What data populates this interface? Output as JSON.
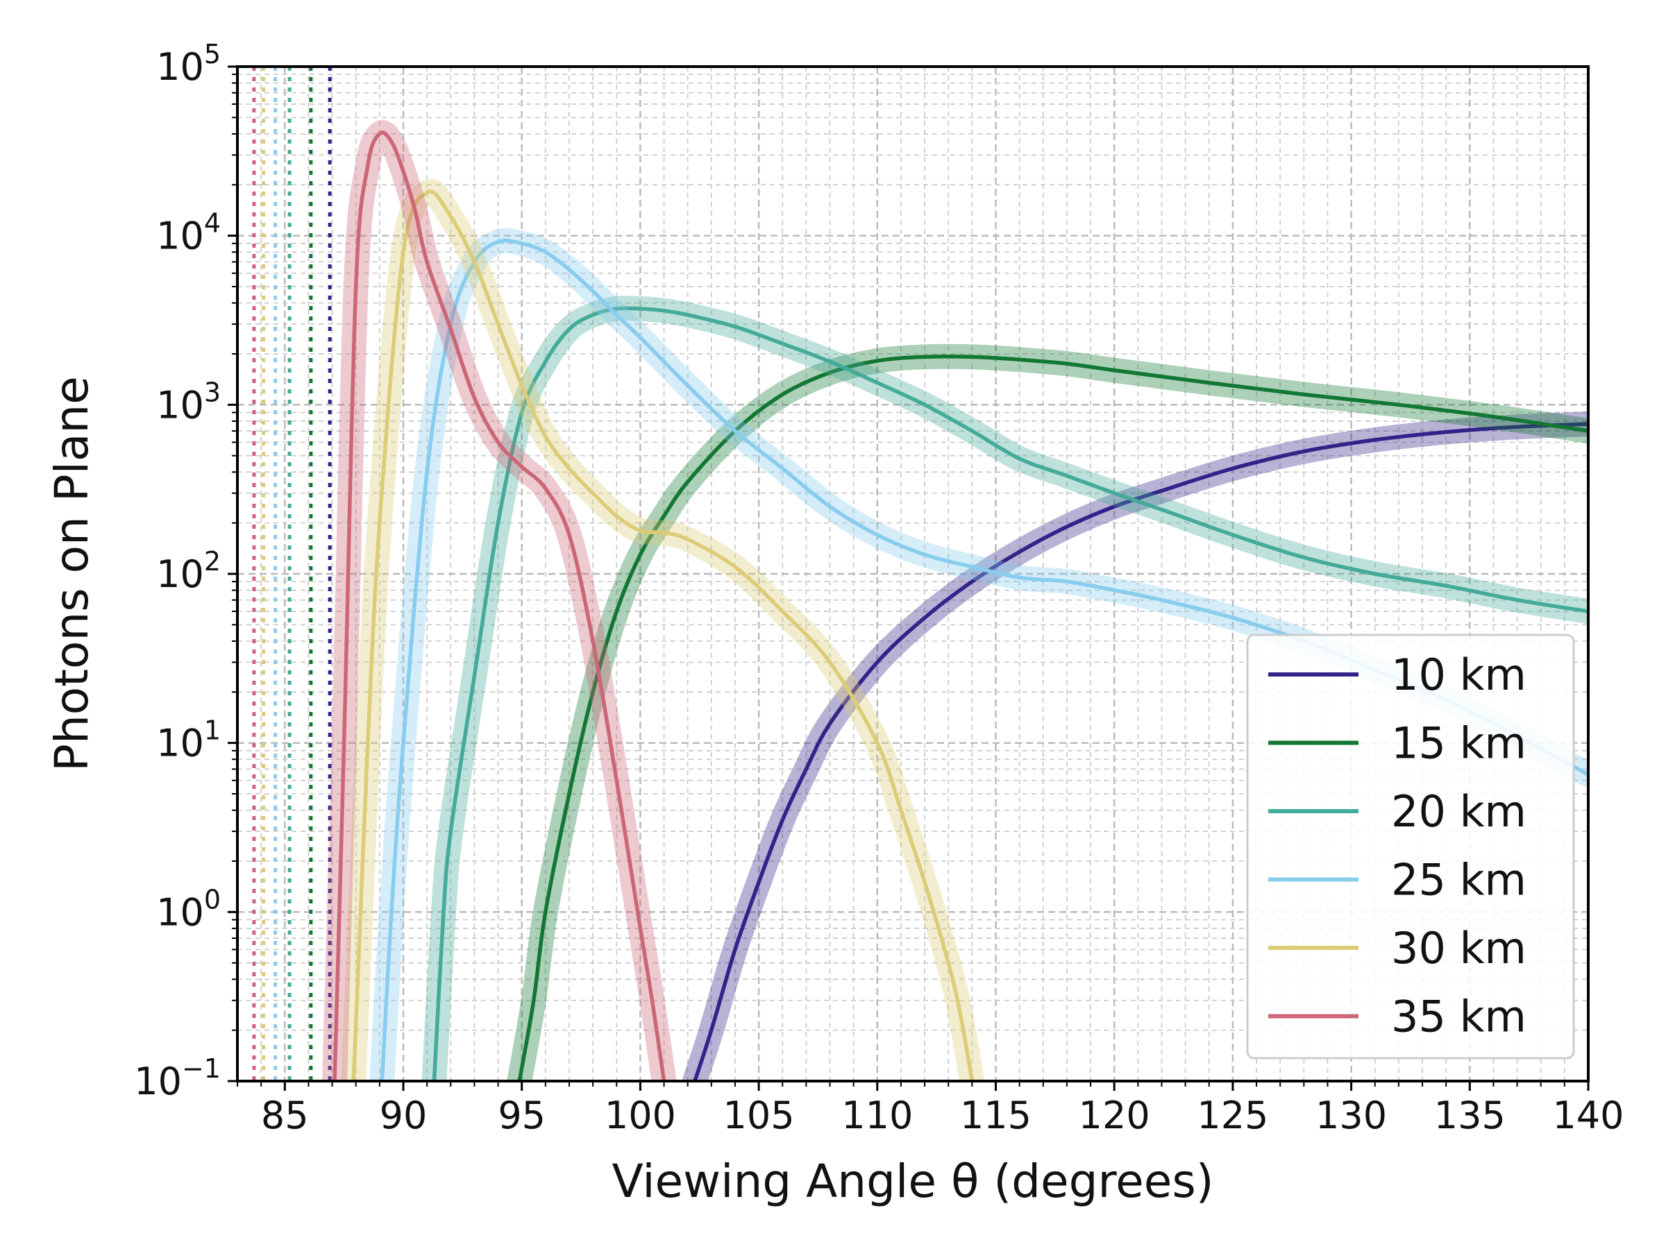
{
  "chart_data": {
    "type": "line",
    "title": "",
    "xlabel": "Viewing Angle θ (degrees)",
    "ylabel": "Photons on Plane",
    "xlim": [
      83,
      140
    ],
    "ylim": [
      0.1,
      100000
    ],
    "yscale": "log",
    "grid": true,
    "legend_position": "lower-right",
    "x_ticks": [
      85,
      90,
      95,
      100,
      105,
      110,
      115,
      120,
      125,
      130,
      135,
      140
    ],
    "y_ticks": [
      {
        "value": 0.1,
        "base": "10",
        "exp": "−1"
      },
      {
        "value": 1,
        "base": "10",
        "exp": "0"
      },
      {
        "value": 10,
        "base": "10",
        "exp": "1"
      },
      {
        "value": 100,
        "base": "10",
        "exp": "2"
      },
      {
        "value": 1000,
        "base": "10",
        "exp": "3"
      },
      {
        "value": 10000,
        "base": "10",
        "exp": "4"
      },
      {
        "value": 100000,
        "base": "10",
        "exp": "5"
      }
    ],
    "series": [
      {
        "name": "10 km",
        "color": "#332288",
        "cutoff_angle": 86.9,
        "x": [
          102.3,
          103,
          104,
          105,
          106,
          107,
          108,
          110,
          112,
          114,
          116,
          118,
          120,
          122,
          125,
          128,
          131,
          134,
          137,
          140
        ],
        "y": [
          0.1,
          0.2,
          0.6,
          1.5,
          3.5,
          7,
          13,
          30,
          55,
          90,
          135,
          190,
          250,
          310,
          420,
          530,
          620,
          690,
          740,
          770
        ]
      },
      {
        "name": "15 km",
        "color": "#117733",
        "cutoff_angle": 86.1,
        "x": [
          94.9,
          95.5,
          96,
          97,
          98,
          99,
          100,
          101,
          102,
          104,
          106,
          108,
          110,
          112,
          114,
          116,
          118,
          120,
          124,
          128,
          132,
          136,
          140
        ],
        "y": [
          0.1,
          0.3,
          1,
          5,
          20,
          60,
          130,
          220,
          350,
          700,
          1150,
          1550,
          1820,
          1920,
          1920,
          1850,
          1750,
          1600,
          1350,
          1150,
          1000,
          850,
          700
        ]
      },
      {
        "name": "20 km",
        "color": "#44AA99",
        "cutoff_angle": 85.2,
        "x": [
          91.3,
          91.7,
          92,
          93,
          94,
          95,
          96,
          97,
          98,
          99,
          100,
          101,
          102,
          104,
          106,
          108,
          110,
          112,
          114,
          116,
          118,
          120,
          122,
          125,
          128,
          131,
          134,
          137,
          140
        ],
        "y": [
          0.1,
          1,
          3,
          25,
          200,
          900,
          1800,
          2800,
          3400,
          3700,
          3700,
          3600,
          3400,
          2900,
          2300,
          1800,
          1350,
          1000,
          700,
          480,
          380,
          300,
          240,
          170,
          125,
          100,
          85,
          70,
          60
        ]
      },
      {
        "name": "25 km",
        "color": "#88CCEE",
        "cutoff_angle": 84.6,
        "x": [
          89.1,
          89.5,
          90,
          91,
          92,
          93,
          94,
          95,
          96,
          97,
          98,
          99,
          100,
          101,
          102,
          104,
          106,
          108,
          110,
          112,
          114,
          116,
          118,
          120,
          122,
          125,
          128,
          131,
          134,
          137,
          140
        ],
        "y": [
          0.1,
          1,
          10,
          400,
          3000,
          7000,
          9200,
          9000,
          8000,
          6300,
          4700,
          3400,
          2500,
          1800,
          1300,
          700,
          420,
          250,
          170,
          130,
          110,
          95,
          90,
          80,
          70,
          55,
          40,
          27,
          18,
          11,
          6.5
        ]
      },
      {
        "name": "30 km",
        "color": "#DDCC77",
        "cutoff_angle": 84.1,
        "x": [
          87.9,
          88.2,
          88.5,
          89,
          90,
          91,
          92,
          93,
          94,
          95,
          96,
          97,
          98,
          99,
          100,
          101,
          102,
          104,
          106,
          108,
          110,
          111,
          112,
          113,
          113.5,
          114
        ],
        "y": [
          0.1,
          1,
          10,
          200,
          8000,
          18000,
          13000,
          7000,
          3000,
          1300,
          650,
          420,
          300,
          220,
          180,
          175,
          160,
          110,
          60,
          30,
          10,
          4,
          1.5,
          0.5,
          0.25,
          0.1
        ]
      },
      {
        "name": "35 km",
        "color": "#CC6677",
        "cutoff_angle": 83.7,
        "x": [
          87.1,
          87.5,
          88,
          88.5,
          89,
          89.5,
          90,
          90.5,
          91,
          92,
          93,
          94,
          95,
          96,
          97,
          98,
          99,
          100,
          100.5,
          101
        ],
        "y": [
          0.1,
          10,
          5000,
          26000,
          40000,
          36000,
          24000,
          14000,
          7000,
          2800,
          1100,
          600,
          430,
          320,
          170,
          40,
          6,
          0.8,
          0.3,
          0.1
        ]
      }
    ]
  }
}
